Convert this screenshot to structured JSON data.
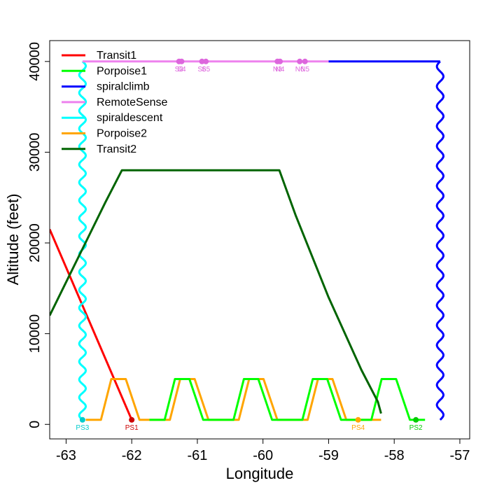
{
  "chart_data": {
    "type": "line",
    "title": "",
    "xlabel": "Longitude",
    "ylabel": "Altitude (feet)",
    "xlim": [
      -63.25,
      -56.85
    ],
    "ylim": [
      -1600,
      42300
    ],
    "xticks": [
      -63,
      -62,
      -61,
      -60,
      -59,
      -58,
      -57
    ],
    "yticks": [
      0,
      10000,
      20000,
      30000,
      40000
    ],
    "legend_position": "top-left",
    "series": [
      {
        "name": "Transit1",
        "color": "#ff0000",
        "style": "line",
        "x": [
          -63.25,
          -62.0
        ],
        "y": [
          21500,
          500
        ]
      },
      {
        "name": "Porpoise1",
        "color": "#00ff00",
        "style": "zigzag",
        "x_start": -62.0,
        "x_end": -57.3,
        "y_low": 500,
        "y_high": 5000,
        "cycles": [
          [
            -62.0,
            -61.75,
            -61.4,
            -61.2,
            -60.95
          ],
          [
            -60.95,
            -60.7,
            -60.35,
            -60.15,
            -59.9
          ],
          [
            -59.9,
            -59.65,
            -59.3,
            -59.1,
            -58.85
          ],
          [
            -58.85,
            -58.6,
            -58.3,
            -58.1,
            -57.85
          ],
          [
            -57.85,
            -57.7,
            -57.65,
            -57.5,
            -57.3
          ]
        ]
      },
      {
        "name": "spiralclimb",
        "color": "#0000ff",
        "style": "spiral",
        "x": -57.3,
        "y_from": 500,
        "y_to": 40000,
        "top_x_from": -59.0,
        "top_x_to": -57.3
      },
      {
        "name": "RemoteSense",
        "color": "#ee82ee",
        "style": "line",
        "x": [
          -62.75,
          -59.0
        ],
        "y": [
          40000,
          40000
        ]
      },
      {
        "name": "spiraldescent",
        "color": "#00ffff",
        "style": "spiral",
        "x": -62.75,
        "y_from": 40000,
        "y_to": 500
      },
      {
        "name": "Porpoise2",
        "color": "#ffa500",
        "style": "zigzag",
        "x_start": -62.75,
        "x_end": -58.2,
        "y_low": 500,
        "y_high": 5000
      },
      {
        "name": "Transit2",
        "color": "#006400",
        "style": "curve",
        "x": [
          -63.25,
          -62.4,
          -62.15,
          -61.5,
          -60.5,
          -59.75,
          -59.5,
          -59.0,
          -58.5,
          -58.25,
          -58.2
        ],
        "y": [
          12000,
          24500,
          28000,
          28000,
          28000,
          28000,
          23000,
          14000,
          6000,
          2500,
          1200
        ]
      }
    ],
    "waypoints": [
      {
        "label": "PS1",
        "x": -62.0,
        "y": 500,
        "color": "#cc0000"
      },
      {
        "label": "PS2",
        "x": -57.67,
        "y": 500,
        "color": "#00cc00"
      },
      {
        "label": "PS3",
        "x": -62.75,
        "y": 500,
        "color": "#00cccc"
      },
      {
        "label": "PS4",
        "x": -58.55,
        "y": 500,
        "color": "#ffa500"
      },
      {
        "label": "S3",
        "x": -61.28,
        "y": 40000,
        "color": "#dd66dd"
      },
      {
        "label": "S4",
        "x": -61.24,
        "y": 40000,
        "color": "#dd66dd"
      },
      {
        "label": "S6",
        "x": -60.93,
        "y": 40000,
        "color": "#dd66dd"
      },
      {
        "label": "S5",
        "x": -60.87,
        "y": 40000,
        "color": "#dd66dd"
      },
      {
        "label": "N3",
        "x": -59.78,
        "y": 40000,
        "color": "#dd66dd"
      },
      {
        "label": "N4",
        "x": -59.74,
        "y": 40000,
        "color": "#dd66dd"
      },
      {
        "label": "N6",
        "x": -59.44,
        "y": 40000,
        "color": "#dd66dd"
      },
      {
        "label": "N5",
        "x": -59.36,
        "y": 40000,
        "color": "#dd66dd"
      }
    ]
  }
}
